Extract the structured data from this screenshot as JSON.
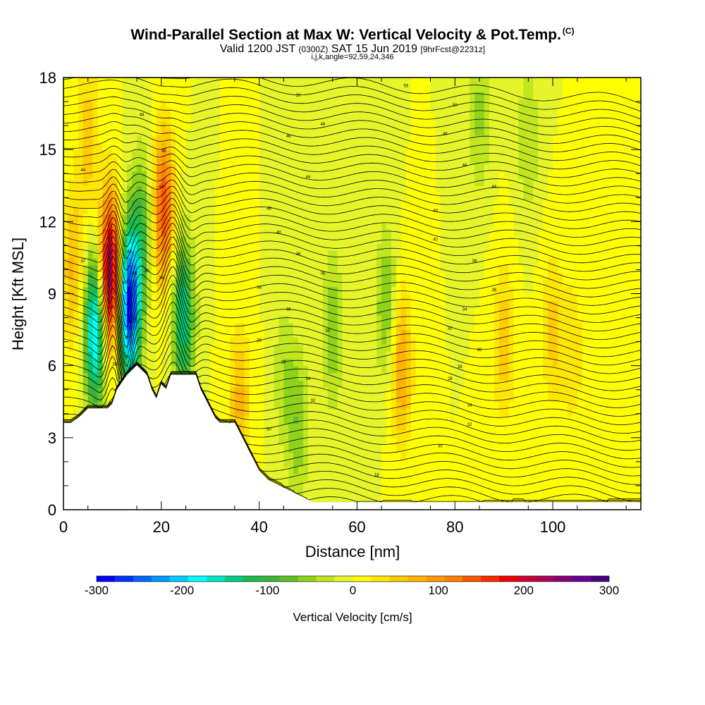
{
  "header": {
    "title": "Wind-Parallel Section at Max W: Vertical Velocity & Pot.Temp.",
    "title_mark": "(C)",
    "valid_prefix": "Valid 1200 JST",
    "valid_utc": "(0300Z)",
    "valid_date": "SAT 15 Jun 2019",
    "forecast": "[9hrFcst@2231z]",
    "params": "i,j,k,angle=92,59,24,346"
  },
  "chart_data": {
    "type": "heatmap",
    "title": "Wind-Parallel Section at Max W: Vertical Velocity & Pot.Temp.",
    "xlabel": "Distance [nm]",
    "ylabel": "Height [Kft MSL]",
    "xlim": [
      0,
      118
    ],
    "ylim": [
      0,
      18
    ],
    "x_ticks": [
      "0",
      "20",
      "40",
      "60",
      "80",
      "100"
    ],
    "y_ticks": [
      "0",
      "3",
      "6",
      "9",
      "12",
      "15",
      "18"
    ],
    "colorbar": {
      "label": "Vertical Velocity [cm/s]",
      "range": [
        -300,
        300
      ],
      "tick_labels": [
        "-300",
        "-200",
        "-100",
        "0",
        "100",
        "200",
        "300"
      ],
      "colors": [
        "#0000ff",
        "#0033ff",
        "#0066ff",
        "#0099ff",
        "#00ccff",
        "#00ffff",
        "#00e6c3",
        "#00cc88",
        "#1fbb4a",
        "#3cb33c",
        "#5fbf2a",
        "#8fd21a",
        "#c0e620",
        "#e6f52a",
        "#ffff00",
        "#ffe600",
        "#ffcc00",
        "#ffb300",
        "#ff9900",
        "#ff7f00",
        "#ff5500",
        "#ff2a00",
        "#ee0000",
        "#cc0033",
        "#aa0055",
        "#880077",
        "#660099",
        "#4b0082"
      ]
    },
    "terrain_kft": [
      [
        0,
        3.6
      ],
      [
        1.5,
        3.6
      ],
      [
        3,
        3.8
      ],
      [
        4,
        4.0
      ],
      [
        5,
        4.2
      ],
      [
        9,
        4.2
      ],
      [
        10,
        4.4
      ],
      [
        11,
        5.0
      ],
      [
        13,
        5.6
      ],
      [
        15,
        6.0
      ],
      [
        17,
        5.6
      ],
      [
        18,
        5.0
      ],
      [
        19,
        4.6
      ],
      [
        20,
        5.2
      ],
      [
        21,
        5.0
      ],
      [
        22,
        5.6
      ],
      [
        27,
        5.6
      ],
      [
        28,
        5.0
      ],
      [
        30,
        4.2
      ],
      [
        31,
        3.8
      ],
      [
        32,
        3.6
      ],
      [
        35,
        3.6
      ],
      [
        36,
        3.2
      ],
      [
        37,
        2.8
      ],
      [
        38,
        2.4
      ],
      [
        39,
        2.0
      ],
      [
        40,
        1.6
      ],
      [
        41,
        1.4
      ],
      [
        42,
        1.2
      ],
      [
        44,
        1.0
      ],
      [
        46,
        0.8
      ],
      [
        48,
        0.6
      ],
      [
        50,
        0.4
      ],
      [
        51,
        0.3
      ],
      [
        118,
        0.3
      ]
    ],
    "w_features_cm_s": [
      {
        "x": 9.5,
        "y": 9.8,
        "value": 260
      },
      {
        "x": 13.5,
        "y": 8.5,
        "value": -290
      },
      {
        "x": 6.5,
        "y": 7.5,
        "value": -210
      },
      {
        "x": 16,
        "y": 11.8,
        "value": -80
      },
      {
        "x": 20.5,
        "y": 12.5,
        "value": 150
      },
      {
        "x": 24.5,
        "y": 8.0,
        "value": -150
      },
      {
        "x": 66,
        "y": 8.5,
        "value": -70
      },
      {
        "x": 69,
        "y": 6.0,
        "value": 90
      },
      {
        "x": 55,
        "y": 7.5,
        "value": -60
      },
      {
        "x": 90,
        "y": 7.0,
        "value": 60
      },
      {
        "x": 100,
        "y": 7.5,
        "value": 50
      },
      {
        "x": 104,
        "y": 6.5,
        "value": 40
      },
      {
        "x": 5,
        "y": 15.5,
        "value": 60
      },
      {
        "x": 2,
        "y": 10,
        "value": 70
      },
      {
        "x": 36,
        "y": 4.5,
        "value": 70
      },
      {
        "x": 45,
        "y": 5.5,
        "value": -40
      },
      {
        "x": 48,
        "y": 3.5,
        "value": -60
      },
      {
        "x": 85,
        "y": 16.5,
        "value": -50
      },
      {
        "x": 95,
        "y": 15.5,
        "value": -45
      }
    ],
    "theta_contour_labels": [
      {
        "x": 70,
        "y": 17.6,
        "text": "53"
      },
      {
        "x": 48,
        "y": 17.2,
        "text": "50"
      },
      {
        "x": 80,
        "y": 16.8,
        "text": "50"
      },
      {
        "x": 16,
        "y": 16.4,
        "text": "48"
      },
      {
        "x": 53,
        "y": 16.0,
        "text": "48"
      },
      {
        "x": 78,
        "y": 15.6,
        "text": "48"
      },
      {
        "x": 46,
        "y": 15.5,
        "text": "46"
      },
      {
        "x": 20.5,
        "y": 14.9,
        "text": "46"
      },
      {
        "x": 4,
        "y": 14.1,
        "text": "44"
      },
      {
        "x": 82,
        "y": 14.3,
        "text": "44"
      },
      {
        "x": 50,
        "y": 13.8,
        "text": "44"
      },
      {
        "x": 20,
        "y": 13.4,
        "text": "44"
      },
      {
        "x": 88,
        "y": 13.4,
        "text": "44"
      },
      {
        "x": 42,
        "y": 12.5,
        "text": "48"
      },
      {
        "x": 76,
        "y": 12.4,
        "text": "48"
      },
      {
        "x": 44,
        "y": 11.5,
        "text": "40"
      },
      {
        "x": 76,
        "y": 11.2,
        "text": "40"
      },
      {
        "x": 48,
        "y": 10.6,
        "text": "38"
      },
      {
        "x": 84,
        "y": 10.3,
        "text": "38"
      },
      {
        "x": 4,
        "y": 10.3,
        "text": "37"
      },
      {
        "x": 13.5,
        "y": 10.7,
        "text": "40"
      },
      {
        "x": 12.5,
        "y": 9.4,
        "text": "40"
      },
      {
        "x": 14.5,
        "y": 9.8,
        "text": "38"
      },
      {
        "x": 17,
        "y": 9.9,
        "text": "36"
      },
      {
        "x": 20,
        "y": 9.6,
        "text": "34"
      },
      {
        "x": 53,
        "y": 9.8,
        "text": "36"
      },
      {
        "x": 40,
        "y": 9.2,
        "text": "34"
      },
      {
        "x": 88,
        "y": 9.1,
        "text": "36"
      },
      {
        "x": 46,
        "y": 8.3,
        "text": "36"
      },
      {
        "x": 82,
        "y": 8.3,
        "text": "34"
      },
      {
        "x": 14.5,
        "y": 7.9,
        "text": "32"
      },
      {
        "x": 54,
        "y": 7.4,
        "text": "30"
      },
      {
        "x": 79,
        "y": 7.5,
        "text": "32"
      },
      {
        "x": 13,
        "y": 7.1,
        "text": "30"
      },
      {
        "x": 40,
        "y": 7.0,
        "text": "28"
      },
      {
        "x": 85,
        "y": 6.6,
        "text": "30"
      },
      {
        "x": 13,
        "y": 6.3,
        "text": "29"
      },
      {
        "x": 45,
        "y": 6.1,
        "text": "28"
      },
      {
        "x": 81,
        "y": 5.9,
        "text": "28"
      },
      {
        "x": 10.5,
        "y": 6.0,
        "text": "28"
      },
      {
        "x": 50,
        "y": 5.4,
        "text": "34"
      },
      {
        "x": 79,
        "y": 5.4,
        "text": "28"
      },
      {
        "x": 51,
        "y": 4.5,
        "text": "32"
      },
      {
        "x": 83,
        "y": 4.3,
        "text": "34"
      },
      {
        "x": 83,
        "y": 3.5,
        "text": "32"
      },
      {
        "x": 42,
        "y": 3.3,
        "text": "30"
      },
      {
        "x": 77,
        "y": 2.6,
        "text": "30"
      },
      {
        "x": 64,
        "y": 1.4,
        "text": "18"
      }
    ]
  }
}
